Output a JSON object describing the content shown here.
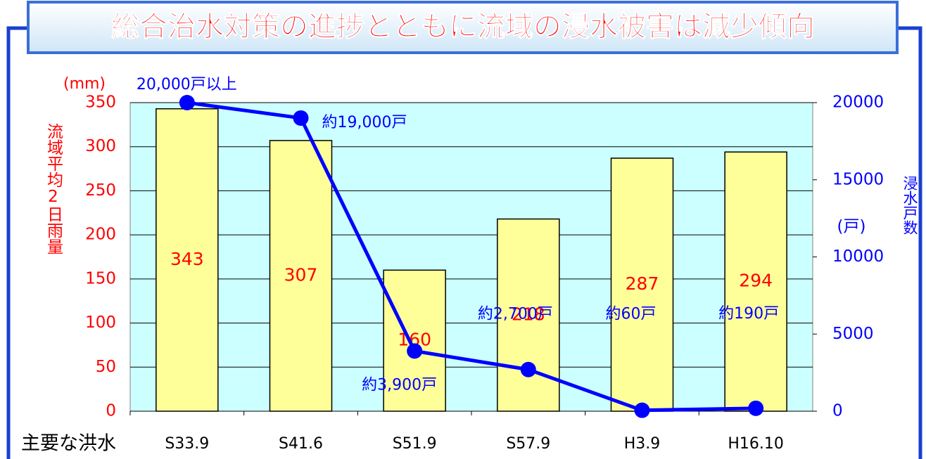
{
  "chart_data": {
    "type": "bar+line",
    "title": "総合治水対策の進捗とともに流域の浸水被害は減少傾向",
    "y_axis_label": "流域平均2日雨量",
    "y_unit": "(mm)",
    "y2_axis_label": "浸水戸数",
    "y2_unit": "(戸)",
    "x_axis_label": "主要な洪水",
    "categories": [
      "S33.9",
      "S41.6",
      "S51.9",
      "S57.9",
      "H3.9",
      "H16.10"
    ],
    "series": [
      {
        "name": "流域平均2日雨量",
        "type": "bar",
        "color": "#ffff99",
        "values": [
          343,
          307,
          160,
          218,
          287,
          294
        ]
      },
      {
        "name": "浸水戸数",
        "type": "line",
        "axis": "y2",
        "color": "#0000ff",
        "values": [
          20000,
          19000,
          3900,
          2700,
          60,
          190
        ],
        "value_labels": [
          "20,000戸以上",
          "約19,000戸",
          "約3,900戸",
          "約2,700戸",
          "約60戸",
          "約190戸"
        ]
      }
    ],
    "ylim": [
      0,
      350
    ],
    "yticks": [
      0,
      50,
      100,
      150,
      200,
      250,
      300,
      350
    ],
    "y2lim": [
      0,
      20000
    ],
    "y2ticks": [
      0,
      5000,
      10000,
      15000,
      20000
    ],
    "grid": true
  }
}
